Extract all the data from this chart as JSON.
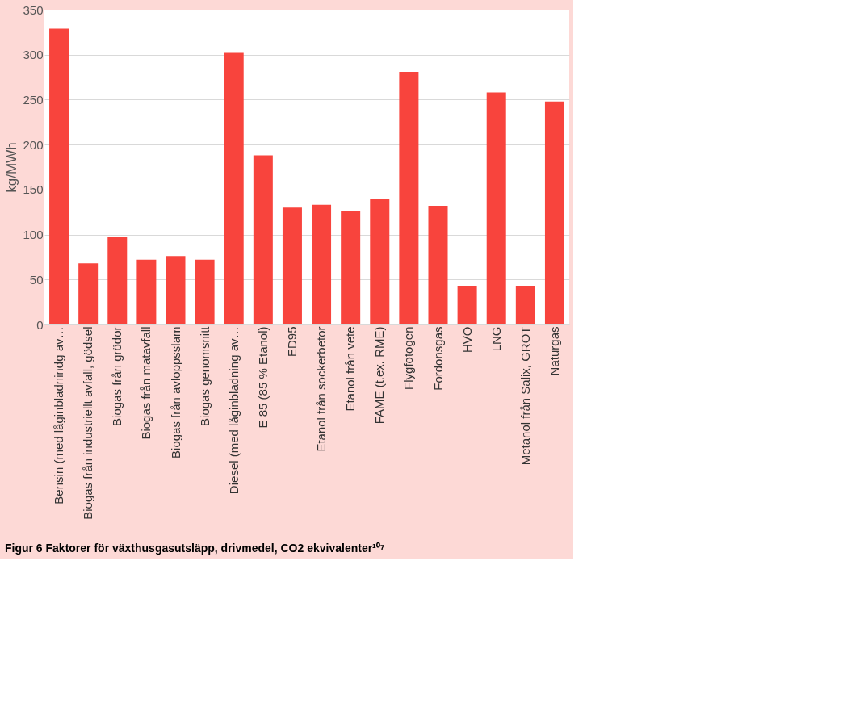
{
  "chart_data": {
    "type": "bar",
    "title": "Figur 6 Faktorer för växthusgasutsläpp, drivmedel, CO2 ekvivalenter¹⁰⁷",
    "ylabel": "kg/MWh",
    "categories": [
      "Bensin (med låginbladnindg av…",
      "Biogas från industriellt avfall, gödsel",
      "Biogas från grödor",
      "Biogas från matavfall",
      "Biogas från avloppsslam",
      "Biogas genomsnitt",
      "Diesel (med låginbladning av…",
      "E 85 (85 % Etanol)",
      "ED95",
      "Etanol från sockerbetor",
      "Etanol från vete",
      "FAME (t.ex. RME)",
      "Flygfotogen",
      "Fordonsgas",
      "HVO",
      "LNG",
      "Metanol från Salix, GROT",
      "Naturgas"
    ],
    "values": [
      329,
      68,
      97,
      72,
      76,
      72,
      302,
      188,
      130,
      133,
      126,
      140,
      281,
      132,
      43,
      258,
      43,
      248
    ],
    "color": "#f8443d",
    "ylim": [
      0,
      350
    ],
    "yticks": [
      0,
      50,
      100,
      150,
      200,
      250,
      300,
      350
    ],
    "grid": "y"
  }
}
